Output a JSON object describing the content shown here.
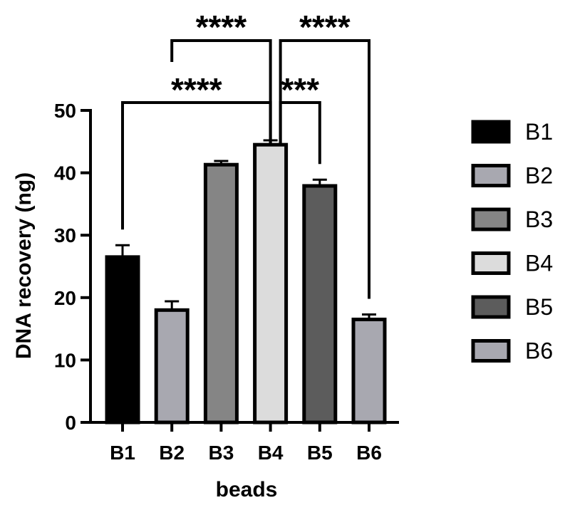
{
  "chart_data": {
    "type": "bar",
    "categories": [
      "B1",
      "B2",
      "B3",
      "B4",
      "B5",
      "B6"
    ],
    "values": [
      26.5,
      18.0,
      41.3,
      44.5,
      37.9,
      16.5
    ],
    "errors": [
      1.9,
      1.4,
      0.6,
      0.7,
      1.0,
      0.8
    ],
    "bar_colors": [
      "#000000",
      "#a8a8b0",
      "#858585",
      "#dcdcdc",
      "#5c5c5c",
      "#a8a8b0"
    ],
    "xlabel": "beads",
    "ylabel": "DNA recovery (ng)",
    "ylim": [
      0,
      50
    ],
    "yticks": [
      0,
      10,
      20,
      30,
      40,
      50
    ],
    "legend": {
      "position": "right",
      "entries": [
        "B1",
        "B2",
        "B3",
        "B4",
        "B5",
        "B6"
      ]
    },
    "significance": [
      {
        "from": "B1",
        "to": "B4",
        "label": "****"
      },
      {
        "from": "B2",
        "to": "B4",
        "label": "****"
      },
      {
        "from": "B4",
        "to": "B5",
        "label": "***"
      },
      {
        "from": "B4",
        "to": "B6",
        "label": "****"
      }
    ]
  }
}
